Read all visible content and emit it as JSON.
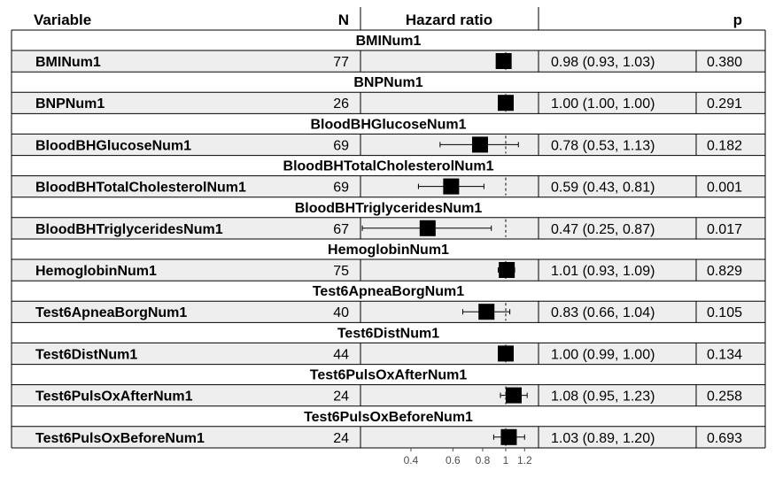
{
  "chart_data": {
    "type": "forest",
    "headers": {
      "variable": "Variable",
      "n": "N",
      "effect": "Hazard ratio",
      "p": "p"
    },
    "rows": [
      {
        "group": "BMINum1",
        "variable": "BMINum1",
        "n": "77",
        "hr": 0.98,
        "lower": 0.93,
        "upper": 1.03,
        "ci_text": "0.98 (0.93, 1.03)",
        "p": "0.380"
      },
      {
        "group": "BNPNum1",
        "variable": "BNPNum1",
        "n": "26",
        "hr": 1.0,
        "lower": 1.0,
        "upper": 1.0,
        "ci_text": "1.00 (1.00, 1.00)",
        "p": "0.291"
      },
      {
        "group": "BloodBHGlucoseNum1",
        "variable": "BloodBHGlucoseNum1",
        "n": "69",
        "hr": 0.78,
        "lower": 0.53,
        "upper": 1.13,
        "ci_text": "0.78 (0.53, 1.13)",
        "p": "0.182"
      },
      {
        "group": "BloodBHTotalCholesterolNum1",
        "variable": "BloodBHTotalCholesterolNum1",
        "n": "69",
        "hr": 0.59,
        "lower": 0.43,
        "upper": 0.81,
        "ci_text": "0.59 (0.43, 0.81)",
        "p": "0.001"
      },
      {
        "group": "BloodBHTriglyceridesNum1",
        "variable": "BloodBHTriglyceridesNum1",
        "n": "67",
        "hr": 0.47,
        "lower": 0.25,
        "upper": 0.87,
        "ci_text": "0.47 (0.25, 0.87)",
        "p": "0.017"
      },
      {
        "group": "HemoglobinNum1",
        "variable": "HemoglobinNum1",
        "n": "75",
        "hr": 1.01,
        "lower": 0.93,
        "upper": 1.09,
        "ci_text": "1.01 (0.93, 1.09)",
        "p": "0.829"
      },
      {
        "group": "Test6ApneaBorgNum1",
        "variable": "Test6ApneaBorgNum1",
        "n": "40",
        "hr": 0.83,
        "lower": 0.66,
        "upper": 1.04,
        "ci_text": "0.83 (0.66, 1.04)",
        "p": "0.105"
      },
      {
        "group": "Test6DistNum1",
        "variable": "Test6DistNum1",
        "n": "44",
        "hr": 1.0,
        "lower": 0.99,
        "upper": 1.0,
        "ci_text": "1.00 (0.99, 1.00)",
        "p": "0.134"
      },
      {
        "group": "Test6PulsOxAfterNum1",
        "variable": "Test6PulsOxAfterNum1",
        "n": "24",
        "hr": 1.08,
        "lower": 0.95,
        "upper": 1.23,
        "ci_text": "1.08 (0.95, 1.23)",
        "p": "0.258"
      },
      {
        "group": "Test6PulsOxBeforeNum1",
        "variable": "Test6PulsOxBeforeNum1",
        "n": "24",
        "hr": 1.03,
        "lower": 0.89,
        "upper": 1.2,
        "ci_text": "1.03 (0.89, 1.20)",
        "p": "0.693"
      }
    ],
    "x_ticks": [
      {
        "value": 0.4,
        "label": "0.4"
      },
      {
        "value": 0.6,
        "label": "0.6"
      },
      {
        "value": 0.8,
        "label": "0.8"
      },
      {
        "value": 1.0,
        "label": "1"
      },
      {
        "value": 1.2,
        "label": "1.2"
      }
    ],
    "x_scale": "log",
    "reference_line": 1,
    "colors": {
      "row_fill": "#eeeeee",
      "border": "#000000",
      "ci_line": "#000000",
      "ref_line": "#000000",
      "tick_text": "#4d4d4d"
    }
  }
}
